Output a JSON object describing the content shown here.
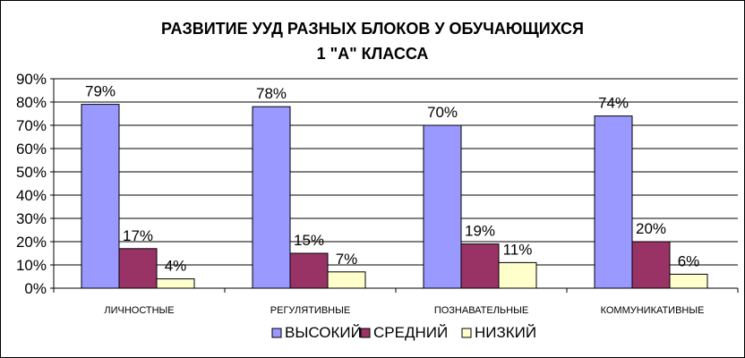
{
  "chart_data": {
    "type": "bar",
    "title_line1": "РАЗВИТИЕ УУД РАЗНЫХ БЛОКОВ У ОБУЧАЮЩИХСЯ",
    "title_line2": "1 \"А\" КЛАССА",
    "categories": [
      "ЛИЧНОСТНЫЕ",
      "РЕГУЛЯТИВНЫЕ",
      "ПОЗНАВАТЕЛЬНЫЕ",
      "КОММУНИКАТИВНЫЕ"
    ],
    "series": [
      {
        "name": "ВЫСОКИЙ",
        "values": [
          79,
          78,
          70,
          74
        ],
        "labels": [
          "79%",
          "78%",
          "70%",
          "74%"
        ],
        "color": "#9999FF"
      },
      {
        "name": "СРЕДНИЙ",
        "values": [
          17,
          15,
          19,
          20
        ],
        "labels": [
          "17%",
          "15%",
          "19%",
          "20%"
        ],
        "color": "#993366"
      },
      {
        "name": "НИЗКИЙ",
        "values": [
          4,
          7,
          11,
          6
        ],
        "labels": [
          "4%",
          "7%",
          "11%",
          "6%"
        ],
        "color": "#FFFFCC"
      }
    ],
    "ylim": [
      0,
      90
    ],
    "yticks": [
      0,
      10,
      20,
      30,
      40,
      50,
      60,
      70,
      80,
      90
    ],
    "ytick_labels": [
      "0%",
      "10%",
      "20%",
      "30%",
      "40%",
      "50%",
      "60%",
      "70%",
      "80%",
      "90%"
    ],
    "grid": true,
    "legend_position": "bottom"
  }
}
